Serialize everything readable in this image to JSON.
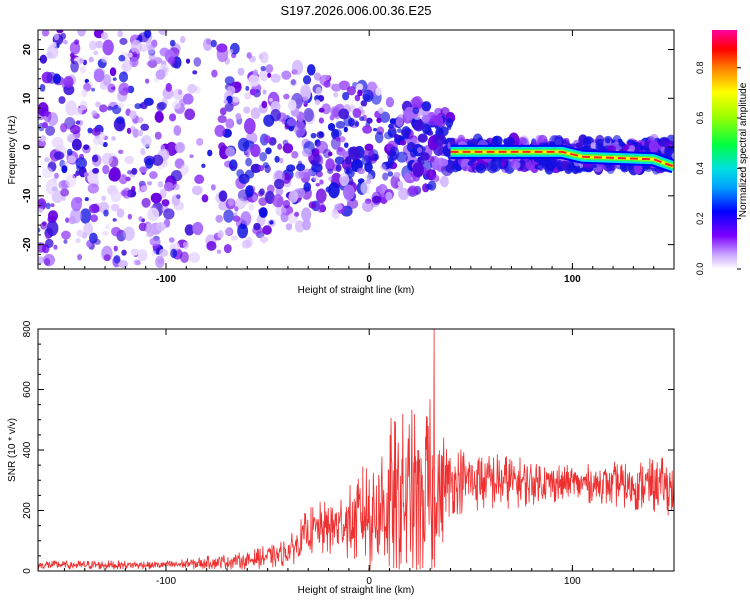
{
  "title": "S197.2026.006.00.36.E25",
  "chart_data": [
    {
      "type": "heatmap",
      "title": "S197.2026.006.00.36.E25",
      "xlabel": "Height of straight line (km)",
      "ylabel": "Frequency (Hz)",
      "xlim": [
        -163,
        150
      ],
      "ylim": [
        -25,
        24
      ],
      "xticks": [
        -100,
        0,
        100
      ],
      "yticks": [
        -20,
        -10,
        0,
        10,
        20
      ],
      "colorbar": {
        "label": "Normalized spectral amplitude",
        "range": [
          0.0,
          0.95
        ],
        "ticks": [
          0.0,
          0.2,
          0.4,
          0.6,
          0.8
        ],
        "tick_labels": [
          "0.0",
          "0.2",
          "0.4",
          "0.6",
          "0.8"
        ]
      },
      "ridge": {
        "description_points": [
          {
            "x": 40,
            "y": -1
          },
          {
            "x": 65,
            "y": -1
          },
          {
            "x": 95,
            "y": -1
          },
          {
            "x": 105,
            "y": -2
          },
          {
            "x": 140,
            "y": -2.5
          },
          {
            "x": 150,
            "y": -4
          }
        ],
        "peak_amplitude": 0.95
      }
    },
    {
      "type": "line",
      "xlabel": "Height of straight line (km)",
      "ylabel": "SNR (10 * v/v)",
      "xlim": [
        -163,
        150
      ],
      "ylim": [
        0,
        800
      ],
      "xticks": [
        -100,
        0,
        100
      ],
      "yticks": [
        0,
        200,
        400,
        600,
        800
      ],
      "series": [
        {
          "name": "SNR",
          "color": "#ee3030",
          "envelope": [
            {
              "x": -163,
              "base": 20,
              "spread": 15
            },
            {
              "x": -100,
              "base": 20,
              "spread": 15
            },
            {
              "x": -60,
              "base": 35,
              "spread": 30
            },
            {
              "x": -40,
              "base": 60,
              "spread": 50
            },
            {
              "x": -30,
              "base": 130,
              "spread": 80
            },
            {
              "x": -10,
              "base": 160,
              "spread": 120
            },
            {
              "x": 0,
              "base": 190,
              "spread": 200
            },
            {
              "x": 10,
              "base": 230,
              "spread": 280
            },
            {
              "x": 30,
              "base": 250,
              "spread": 320
            },
            {
              "x": 40,
              "base": 300,
              "spread": 120
            },
            {
              "x": 100,
              "base": 290,
              "spread": 60
            },
            {
              "x": 150,
              "base": 280,
              "spread": 100
            }
          ],
          "peak": {
            "x": 32,
            "y": 805
          }
        }
      ]
    }
  ]
}
